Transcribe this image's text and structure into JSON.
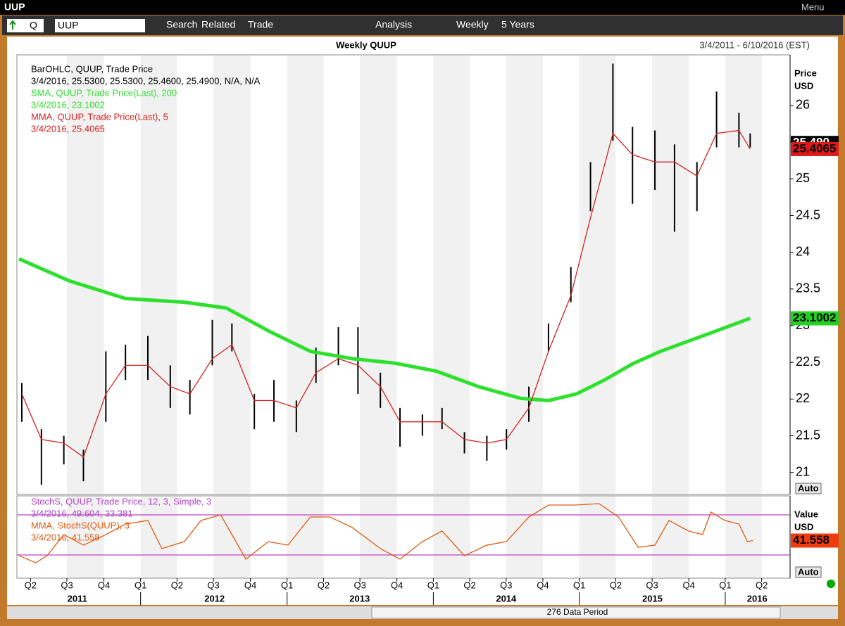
{
  "window": {
    "title": "UUP",
    "menu": "Menu"
  },
  "toolbar": {
    "security": "Q",
    "ticker": "UUP",
    "items": [
      "Search",
      "Related",
      "Trade",
      "Analysis",
      "Weekly",
      "5 Years"
    ]
  },
  "header": {
    "title": "Weekly QUUP",
    "range": "3/4/2011 - 6/10/2016 (EST)"
  },
  "chart_data": [
    {
      "type": "ohlc",
      "ylabel": "Price",
      "yunit": "USD",
      "auto": "Auto",
      "ylim": [
        20.7,
        26.69
      ],
      "yticks": [
        21,
        21.5,
        22,
        22.5,
        23,
        23.5,
        24,
        24.5,
        25,
        25.5,
        26
      ],
      "xlim": [
        0,
        276
      ],
      "series": [
        {
          "name": "BarOHLC, QUUP, Trade Price",
          "last": "3/4/2016, 25.5300, 25.5300, 25.4600, 25.4900, N/A, N/A",
          "color": "#000000",
          "x": [
            1,
            8,
            16,
            23,
            31,
            38,
            46,
            54,
            61,
            69,
            76,
            84,
            91,
            99,
            106,
            114,
            121,
            129,
            136,
            144,
            151,
            159,
            167,
            174,
            182,
            189,
            197,
            204,
            212,
            219,
            227,
            234,
            242,
            249,
            257,
            261
          ],
          "high": [
            22.22,
            21.59,
            21.5,
            21.31,
            22.65,
            22.74,
            22.86,
            22.46,
            22.26,
            23.08,
            23.03,
            22.07,
            22.26,
            21.98,
            22.7,
            22.98,
            22.98,
            22.36,
            21.88,
            21.79,
            21.88,
            21.55,
            21.5,
            21.59,
            22.17,
            23.03,
            23.8,
            25.23,
            26.57,
            25.71,
            25.66,
            25.47,
            25.23,
            26.19,
            25.9,
            25.62
          ],
          "low": [
            21.69,
            20.83,
            21.11,
            20.88,
            21.69,
            22.26,
            22.26,
            21.88,
            21.79,
            22.46,
            22.65,
            21.59,
            21.69,
            21.55,
            22.22,
            22.46,
            22.07,
            21.88,
            21.35,
            21.5,
            21.59,
            21.26,
            21.16,
            21.31,
            21.69,
            22.65,
            23.32,
            24.56,
            25.52,
            24.66,
            24.85,
            24.28,
            24.56,
            25.43,
            25.43,
            25.43
          ],
          "last_value": 25.49,
          "last_label": "25.490"
        },
        {
          "name": "SMA, QUUP, Trade Price(Last),  200",
          "last": "3/4/2016, 23.1002",
          "color": "#2ee02e",
          "x": [
            0,
            18,
            38,
            59,
            74,
            89,
            104,
            119,
            134,
            149,
            164,
            179,
            189,
            199,
            209,
            219,
            229,
            239,
            249,
            261
          ],
          "values": [
            23.91,
            23.61,
            23.37,
            23.32,
            23.24,
            22.93,
            22.65,
            22.55,
            22.49,
            22.38,
            22.17,
            22.01,
            21.98,
            22.07,
            22.26,
            22.48,
            22.65,
            22.79,
            22.93,
            23.1002
          ],
          "last_label": "23.1002"
        },
        {
          "name": "MMA, QUUP, Trade Price(Last),  5",
          "last": "3/4/2016, 25.4065",
          "color": "#d42020",
          "x": [
            1,
            8,
            16,
            23,
            31,
            38,
            46,
            54,
            61,
            69,
            76,
            84,
            91,
            99,
            106,
            114,
            121,
            129,
            136,
            144,
            151,
            159,
            167,
            174,
            182,
            189,
            197,
            204,
            212,
            219,
            227,
            234,
            242,
            249,
            257,
            261
          ],
          "values": [
            22.07,
            21.45,
            21.4,
            21.21,
            22.07,
            22.46,
            22.46,
            22.17,
            22.07,
            22.55,
            22.74,
            21.98,
            21.98,
            21.88,
            22.36,
            22.55,
            22.46,
            22.17,
            21.69,
            21.69,
            21.69,
            21.45,
            21.4,
            21.45,
            21.88,
            22.65,
            23.41,
            24.47,
            25.62,
            25.33,
            25.23,
            25.23,
            25.04,
            25.62,
            25.66,
            25.4065
          ],
          "last_label": "25.4065"
        }
      ]
    },
    {
      "type": "line",
      "ylabel": "Value",
      "yunit": "USD",
      "auto": "Auto",
      "ylim": [
        -14.7,
        108.4
      ],
      "levels": [
        20,
        80
      ],
      "level_color": "#c040c0",
      "xlim": [
        0,
        276
      ],
      "series": [
        {
          "name": "StochS, QUUP, Trade Price,  12, 3, Simple, 3",
          "last": "3/4/2016, 49.604, 33.381",
          "color": "#b040c8"
        },
        {
          "name": "MMA, StochS(QUUP),  3",
          "last": "3/4/2016, 41.558",
          "color": "#e05a10",
          "x": [
            0,
            6,
            10,
            16,
            23,
            31,
            38,
            46,
            51,
            59,
            65,
            72,
            81,
            89,
            96,
            104,
            111,
            119,
            129,
            136,
            144,
            151,
            159,
            167,
            174,
            182,
            189,
            199,
            207,
            214,
            221,
            227,
            232,
            239,
            244,
            247,
            252,
            257,
            260,
            262
          ],
          "values": [
            18.9,
            8.4,
            18.9,
            50.5,
            34.7,
            50.5,
            66.3,
            71.6,
            29.5,
            40,
            71.6,
            80,
            13.7,
            40,
            34.7,
            76.8,
            76.8,
            61,
            29.5,
            13.7,
            40,
            55.8,
            18.9,
            34.7,
            40,
            76.8,
            94.7,
            94.7,
            96.8,
            76.8,
            31.6,
            34.7,
            71.6,
            55.8,
            50.5,
            84.2,
            71.6,
            66.3,
            40,
            41.558
          ],
          "last_label": "41.558"
        }
      ],
      "xticks": [
        {
          "value": 4.1,
          "label": "Q2"
        },
        {
          "value": 17.1,
          "label": "Q3"
        },
        {
          "value": 30.3,
          "label": "Q4"
        },
        {
          "value": 43.4,
          "label": "Q1"
        },
        {
          "value": 56.4,
          "label": "Q2"
        },
        {
          "value": 69.4,
          "label": "Q3"
        },
        {
          "value": 82.6,
          "label": "Q4"
        },
        {
          "value": 95.7,
          "label": "Q1"
        },
        {
          "value": 108.7,
          "label": "Q2"
        },
        {
          "value": 121.7,
          "label": "Q3"
        },
        {
          "value": 134.9,
          "label": "Q4"
        },
        {
          "value": 147.9,
          "label": "Q1"
        },
        {
          "value": 160.9,
          "label": "Q2"
        },
        {
          "value": 173.9,
          "label": "Q3"
        },
        {
          "value": 187,
          "label": "Q4"
        },
        {
          "value": 200,
          "label": "Q1"
        },
        {
          "value": 213,
          "label": "Q2"
        },
        {
          "value": 226,
          "label": "Q3"
        },
        {
          "value": 239.1,
          "label": "Q4"
        },
        {
          "value": 252.1,
          "label": "Q1"
        },
        {
          "value": 265.1,
          "label": "Q2"
        }
      ],
      "years": [
        {
          "value": 20.8,
          "label": "2011"
        },
        {
          "value": 69.8,
          "label": "2012"
        },
        {
          "value": 121.6,
          "label": "2013"
        },
        {
          "value": 173.9,
          "label": "2014"
        },
        {
          "value": 226.1,
          "label": "2015"
        },
        {
          "value": 263.5,
          "label": "2016"
        }
      ],
      "period": "276 Data Period"
    }
  ]
}
